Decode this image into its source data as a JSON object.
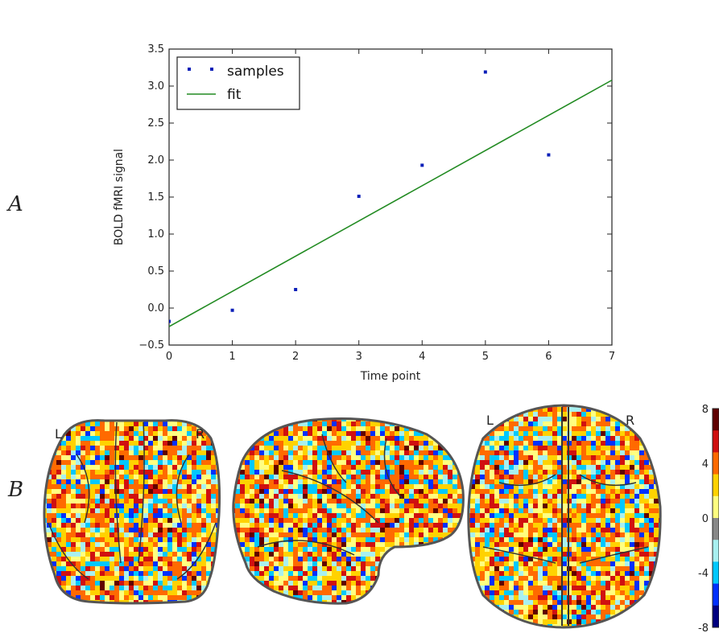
{
  "panels": {
    "a_label": "A",
    "b_label": "B"
  },
  "chart_data": {
    "type": "scatter",
    "xlabel": "Time point",
    "ylabel": "BOLD fMRI signal",
    "xlim": [
      0,
      7
    ],
    "ylim": [
      -0.5,
      3.5
    ],
    "x_ticks": [
      "0",
      "1",
      "2",
      "3",
      "4",
      "5",
      "6",
      "7"
    ],
    "y_ticks": [
      "−0.5",
      "0.0",
      "0.5",
      "1.0",
      "1.5",
      "2.0",
      "2.5",
      "3.0",
      "3.5"
    ],
    "legend_position": "top-left",
    "series": [
      {
        "name": "samples",
        "kind": "scatter",
        "color": "#0b1fb8",
        "x": [
          0,
          1,
          2,
          3,
          4,
          5,
          6
        ],
        "y": [
          -0.18,
          -0.03,
          0.25,
          1.51,
          1.93,
          3.19,
          2.07
        ]
      },
      {
        "name": "fit",
        "kind": "line",
        "color": "#228b22",
        "x": [
          0,
          7
        ],
        "y": [
          -0.25,
          3.08
        ]
      }
    ]
  },
  "brain": {
    "front_left": "L",
    "front_right": "R",
    "top_left": "L",
    "top_right": "R",
    "colorbar_ticks": [
      "8",
      "4",
      "0",
      "-4",
      "-8"
    ],
    "colorbar_range": [
      -8,
      8
    ],
    "colormap": [
      "#000080",
      "#0030ff",
      "#00c8ff",
      "#a8f0f0",
      "#888888",
      "#ffff80",
      "#ffd200",
      "#ff6a00",
      "#d01010",
      "#600000"
    ]
  }
}
